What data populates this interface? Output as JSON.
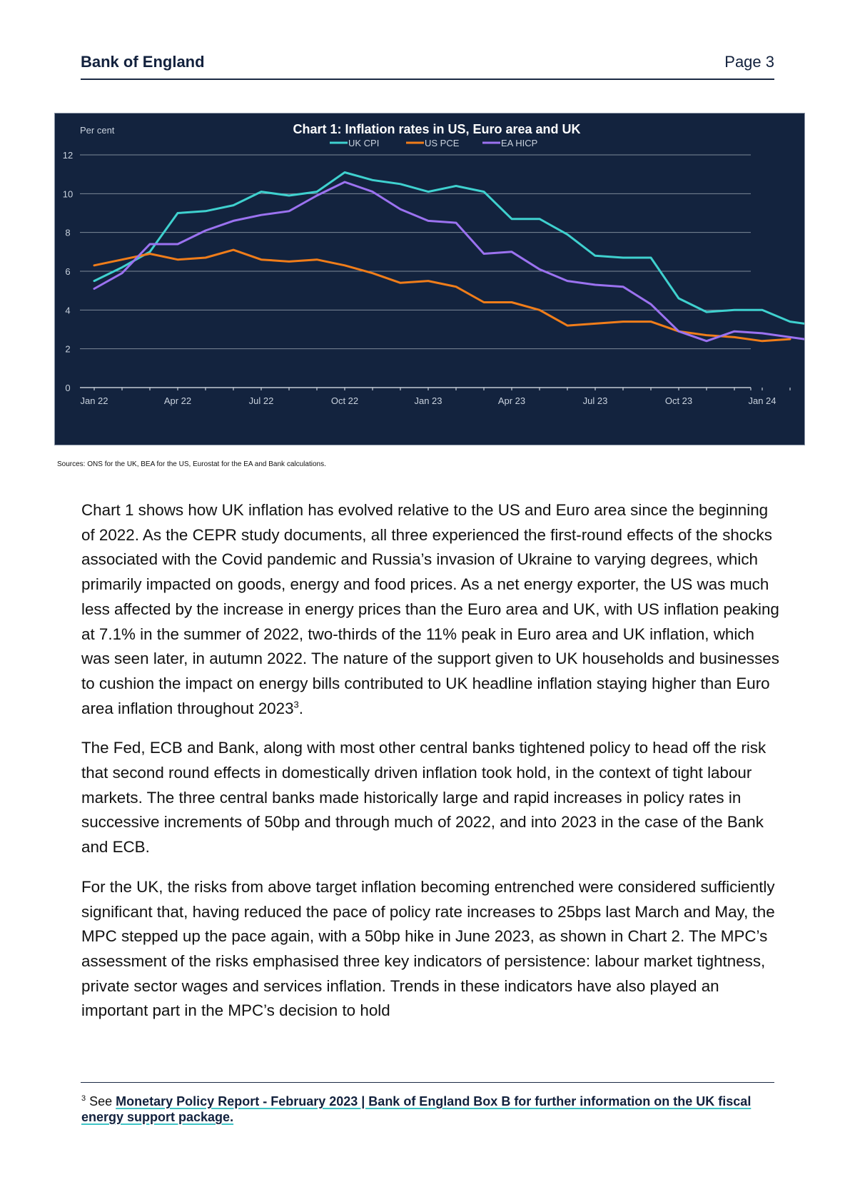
{
  "header": {
    "org": "Bank of England",
    "page": "Page 3"
  },
  "chart_data": {
    "type": "line",
    "title": "Chart 1: Inflation rates in US, Euro area and UK",
    "ylabel": "Per cent",
    "ylim": [
      0,
      12
    ],
    "yticks": [
      "0",
      "2",
      "4",
      "6",
      "8",
      "10",
      "12"
    ],
    "x_tick_labels": [
      "Jan 22",
      "Apr 22",
      "Jul 22",
      "Oct 22",
      "Jan 23",
      "Apr 23",
      "Jul 23",
      "Oct 23",
      "Jan 24"
    ],
    "x": [
      "Jan 22",
      "Feb 22",
      "Mar 22",
      "Apr 22",
      "May 22",
      "Jun 22",
      "Jul 22",
      "Aug 22",
      "Sep 22",
      "Oct 22",
      "Nov 22",
      "Dec 22",
      "Jan 23",
      "Feb 23",
      "Mar 23",
      "Apr 23",
      "May 23",
      "Jun 23",
      "Jul 23",
      "Aug 23",
      "Sep 23",
      "Oct 23",
      "Nov 23",
      "Dec 23",
      "Jan 24",
      "Feb 24",
      "Mar 24"
    ],
    "grid": true,
    "legend_position": "top-center",
    "series": [
      {
        "name": "UK CPI",
        "color": "#3fd1cf",
        "values": [
          5.5,
          6.2,
          7.0,
          9.0,
          9.1,
          9.4,
          10.1,
          9.9,
          10.1,
          11.1,
          10.7,
          10.5,
          10.1,
          10.4,
          10.1,
          8.7,
          8.7,
          7.9,
          6.8,
          6.7,
          6.7,
          4.6,
          3.9,
          4.0,
          4.0,
          3.4,
          3.2
        ]
      },
      {
        "name": "US PCE",
        "color": "#f07d1a",
        "values": [
          6.3,
          6.6,
          6.9,
          6.6,
          6.7,
          7.1,
          6.6,
          6.5,
          6.6,
          6.3,
          5.9,
          5.4,
          5.5,
          5.2,
          4.4,
          4.4,
          4.0,
          3.2,
          3.3,
          3.4,
          3.4,
          2.9,
          2.7,
          2.6,
          2.4,
          2.5,
          null
        ]
      },
      {
        "name": "EA HICP",
        "color": "#9b72f0",
        "values": [
          5.1,
          5.9,
          7.4,
          7.4,
          8.1,
          8.6,
          8.9,
          9.1,
          9.9,
          10.6,
          10.1,
          9.2,
          8.6,
          8.5,
          6.9,
          7.0,
          6.1,
          5.5,
          5.3,
          5.2,
          4.3,
          2.9,
          2.4,
          2.9,
          2.8,
          2.6,
          2.4
        ]
      }
    ]
  },
  "sources": "Sources: ONS for the UK, BEA for the US, Eurostat for the EA and Bank calculations.",
  "paragraphs": {
    "p1": "Chart 1 shows how UK inflation has evolved relative to the US and Euro area since the beginning of 2022. As the CEPR study documents, all three experienced the first-round effects of the shocks associated with the Covid pandemic and Russia’s invasion of Ukraine to varying degrees, which primarily impacted on goods, energy and food prices. As a net energy exporter, the US was much less affected by the increase in energy prices than the Euro area and UK, with US inflation peaking at 7.1% in the summer of 2022, two-thirds of the 11% peak in Euro area and UK inflation, which was seen later, in autumn 2022. The nature of the support given to UK households and businesses to cushion the impact on energy bills contributed to UK headline inflation staying higher than Euro area inflation throughout 2023",
    "p1_sup": "3",
    "p1_end": ".",
    "p2": "The Fed, ECB and Bank, along with most other central banks tightened policy to head off the risk that second round effects in domestically driven inflation took hold, in the context of tight labour markets. The three central banks made historically large and rapid increases in policy rates in successive increments of 50bp and through much of 2022, and into 2023 in the case of the Bank and ECB.",
    "p3": "For the UK, the risks from above target inflation becoming entrenched were considered sufficiently significant that, having reduced the pace of policy rate increases to 25bps last March and May, the MPC stepped up the pace again, with a 50bp hike in June 2023, as shown in Chart 2. The MPC’s assessment of the risks emphasised three key indicators of persistence:  labour market tightness, private sector wages and services inflation. Trends in these indicators have also played an important part in the MPC’s decision to hold"
  },
  "footnote": {
    "number": "3",
    "prefix": " See ",
    "link_text": "Monetary Policy Report - February 2023 | Bank of England Box B for further information on the UK fiscal energy support package."
  }
}
